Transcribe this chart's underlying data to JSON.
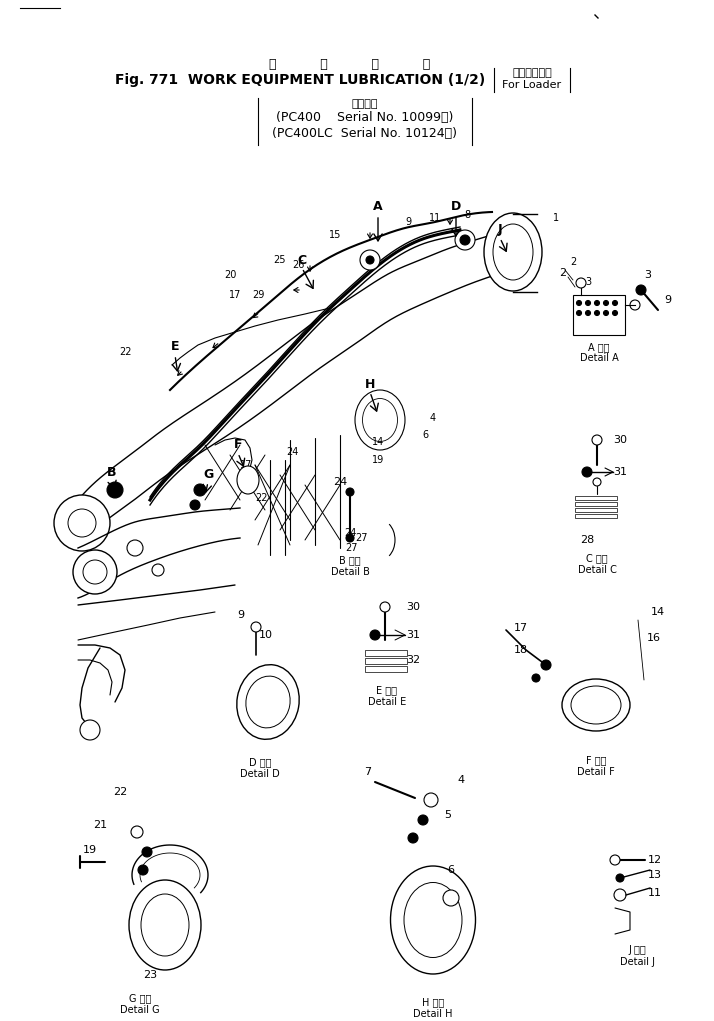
{
  "title_jp": "作          機          溿          滑",
  "title_en": "Fig. 771  WORK EQUIPMENT LUBRICATION (1/2)",
  "title_bracket_top": "（ローダ用）",
  "title_bracket_bot": "For Loader",
  "subtitle_top": "適用号機",
  "subtitle1": "(PC400    Serial No. 10099～)",
  "subtitle2": "(PC400LC  Serial No. 10124～)",
  "bg": "#ffffff",
  "black": "#000000",
  "fig_w": 7.14,
  "fig_h": 10.21,
  "dpi": 100
}
